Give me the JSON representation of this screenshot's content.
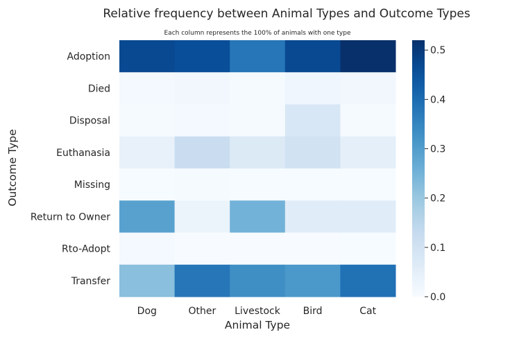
{
  "chart_data": {
    "type": "heatmap",
    "title": "Relative frequency between Animal Types and Outcome Types",
    "subtitle": "Each column represents the 100% of animals with one type",
    "xlabel": "Animal Type",
    "ylabel": "Outcome Type",
    "x_categories": [
      "Dog",
      "Other",
      "Livestock",
      "Bird",
      "Cat"
    ],
    "y_categories": [
      "Adoption",
      "Died",
      "Disposal",
      "Euthanasia",
      "Missing",
      "Return to Owner",
      "Rto-Adopt",
      "Transfer"
    ],
    "values": [
      [
        0.47,
        0.46,
        0.38,
        0.47,
        0.52
      ],
      [
        0.01,
        0.015,
        0.005,
        0.02,
        0.015
      ],
      [
        0.005,
        0.01,
        0.005,
        0.08,
        0.005
      ],
      [
        0.04,
        0.12,
        0.07,
        0.1,
        0.05
      ],
      [
        0.002,
        0.005,
        0.002,
        0.002,
        0.002
      ],
      [
        0.29,
        0.03,
        0.25,
        0.06,
        0.06
      ],
      [
        0.01,
        0.001,
        0.001,
        0.001,
        0.002
      ],
      [
        0.22,
        0.38,
        0.33,
        0.31,
        0.39
      ]
    ],
    "vmin": 0.0,
    "vmax": 0.52,
    "colormap": "Blues",
    "colorbar_ticks": [
      "0.0",
      "0.1",
      "0.2",
      "0.3",
      "0.4",
      "0.5"
    ]
  }
}
